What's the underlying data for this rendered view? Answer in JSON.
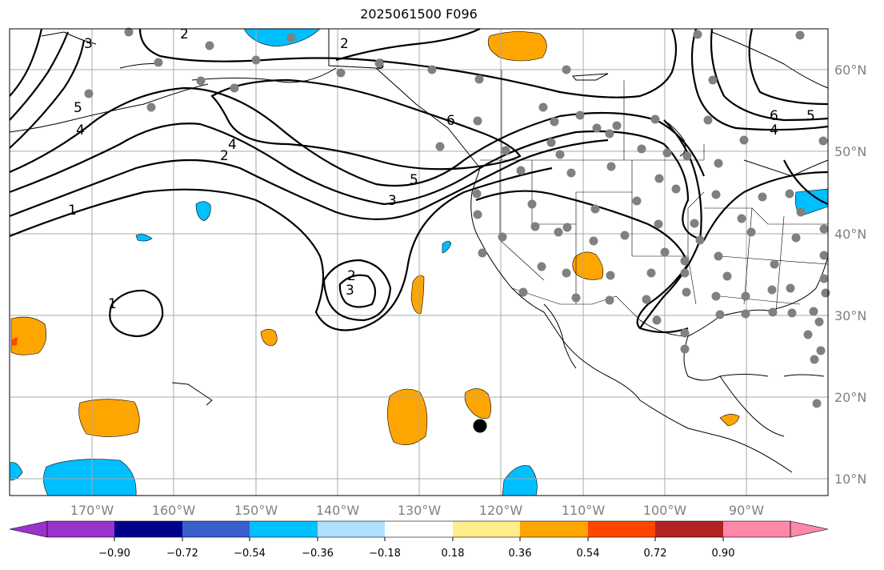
{
  "title": "2025061500 F096",
  "map": {
    "projection": "plate-carree",
    "lon_range": [
      -179,
      -79
    ],
    "lat_range": [
      8,
      65
    ],
    "grid": true,
    "lon_ticks": [
      "170°W",
      "160°W",
      "150°W",
      "140°W",
      "130°W",
      "120°W",
      "110°W",
      "100°W",
      "90°W"
    ],
    "lat_ticks": [
      "60°N",
      "50°N",
      "40°N",
      "30°N",
      "20°N",
      "10°N"
    ],
    "contour_labels": [
      "2",
      "3",
      "6",
      "6",
      "5",
      "4",
      "5",
      "4",
      "2",
      "3",
      "4",
      "5",
      "3",
      "2",
      "3",
      "1",
      "1",
      "2"
    ],
    "marker": {
      "name": "storm-center-dot",
      "lon": -122.4,
      "lat": 16.4
    }
  },
  "colorbar": {
    "ticks": [
      "−0.90",
      "−0.72",
      "−0.54",
      "−0.36",
      "−0.18",
      "0.18",
      "0.36",
      "0.54",
      "0.72",
      "0.90"
    ],
    "colors": [
      "#9933cc",
      "#00008b",
      "#3a5fcd",
      "#00bfff",
      "#b0e0ff",
      "#ffffff",
      "#ffec8b",
      "#ffa500",
      "#ff4500",
      "#b22222",
      "#ff88aa"
    ]
  }
}
